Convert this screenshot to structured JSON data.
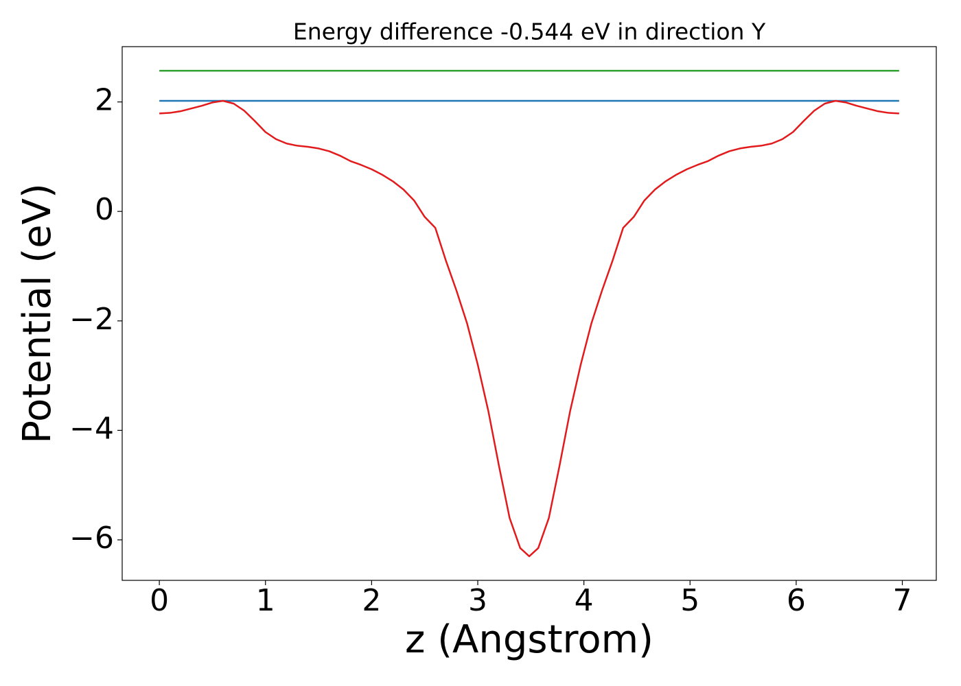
{
  "chart_data": {
    "type": "line",
    "title": "Energy difference -0.544 eV in direction Y",
    "xlabel": "z (Angstrom)",
    "ylabel": "Potential (eV)",
    "xlim": [
      -0.35,
      7.32
    ],
    "ylim": [
      -6.74,
      3.01
    ],
    "xticks": [
      0,
      1,
      2,
      3,
      4,
      5,
      6,
      7
    ],
    "yticks": [
      {
        "value": -6,
        "label": "−6"
      },
      {
        "value": -4,
        "label": "−4"
      },
      {
        "value": -2,
        "label": "−2"
      },
      0,
      2
    ],
    "series": [
      {
        "color": "#2ca02c",
        "x": [
          0,
          6.97
        ],
        "values": [
          2.57,
          2.57
        ]
      },
      {
        "color": "#1f77b4",
        "x": [
          0,
          6.97
        ],
        "values": [
          2.02,
          2.02
        ]
      },
      {
        "color": "#e31a1c",
        "x": [
          0,
          0.1,
          0.2,
          0.3,
          0.4,
          0.5,
          0.6,
          0.7,
          0.8,
          0.9,
          1.0,
          1.1,
          1.2,
          1.3,
          1.4,
          1.5,
          1.6,
          1.7,
          1.8,
          1.9,
          2.0,
          2.1,
          2.2,
          2.3,
          2.4,
          2.5,
          2.6,
          2.7,
          2.8,
          2.9,
          3.0,
          3.1,
          3.2,
          3.3,
          3.4,
          3.485,
          3.57,
          3.67,
          3.77,
          3.87,
          3.97,
          4.07,
          4.17,
          4.27,
          4.37,
          4.47,
          4.57,
          4.67,
          4.77,
          4.87,
          4.97,
          5.07,
          5.17,
          5.27,
          5.37,
          5.47,
          5.57,
          5.67,
          5.77,
          5.87,
          5.97,
          6.07,
          6.17,
          6.27,
          6.37,
          6.47,
          6.57,
          6.67,
          6.77,
          6.87,
          6.97
        ],
        "values": [
          1.79,
          1.8,
          1.83,
          1.88,
          1.93,
          1.99,
          2.02,
          1.97,
          1.84,
          1.65,
          1.45,
          1.32,
          1.24,
          1.2,
          1.18,
          1.15,
          1.1,
          1.02,
          0.92,
          0.85,
          0.77,
          0.67,
          0.55,
          0.4,
          0.2,
          -0.1,
          -0.3,
          -0.9,
          -1.45,
          -2.05,
          -2.8,
          -3.65,
          -4.65,
          -5.6,
          -6.15,
          -6.3,
          -6.15,
          -5.6,
          -4.65,
          -3.65,
          -2.8,
          -2.05,
          -1.45,
          -0.9,
          -0.3,
          -0.1,
          0.2,
          0.4,
          0.55,
          0.67,
          0.77,
          0.85,
          0.92,
          1.02,
          1.1,
          1.15,
          1.18,
          1.2,
          1.24,
          1.32,
          1.45,
          1.65,
          1.84,
          1.97,
          2.02,
          1.99,
          1.93,
          1.88,
          1.83,
          1.8,
          1.79
        ]
      }
    ]
  }
}
